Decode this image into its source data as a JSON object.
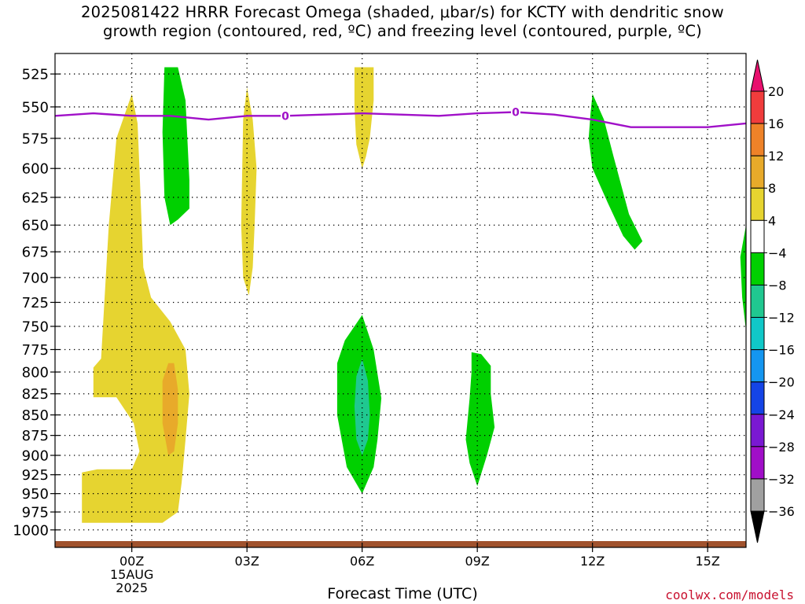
{
  "title": {
    "line1": "2025081422 HRRR Forecast Omega (shaded, μbar/s) for KCTY with dendritic snow",
    "line2": "growth region (contoured, red, ºC) and freezing level (contoured, purple, ºC)"
  },
  "credit": "coolwx.com/models",
  "chart_data": {
    "type": "time-height",
    "title": "2025081422 HRRR Forecast Omega (shaded, μbar/s) for KCTY with dendritic snow growth region (contoured, red, ºC) and freezing level (contoured, purple, ºC)",
    "xlabel": "Forecast Time (UTC)",
    "ylabel": "",
    "x_unit": "hours from 00Z 15AUG 2025",
    "xlim": [
      -2,
      16
    ],
    "ylim": [
      1025,
      510
    ],
    "y_scale": "log-pressure",
    "grid": true,
    "x_ticks": [
      {
        "x": 0,
        "lines": [
          "00Z",
          "15AUG",
          "2025"
        ]
      },
      {
        "x": 3,
        "lines": [
          "03Z"
        ]
      },
      {
        "x": 6,
        "lines": [
          "06Z"
        ]
      },
      {
        "x": 9,
        "lines": [
          "09Z"
        ]
      },
      {
        "x": 12,
        "lines": [
          "12Z"
        ]
      },
      {
        "x": 15,
        "lines": [
          "15Z"
        ]
      }
    ],
    "y_ticks": [
      525,
      550,
      575,
      600,
      625,
      650,
      675,
      700,
      725,
      750,
      775,
      800,
      825,
      850,
      875,
      900,
      925,
      950,
      975,
      1000
    ],
    "colorbar": {
      "levels": [
        20,
        16,
        12,
        8,
        4,
        -4,
        -8,
        -12,
        -16,
        -20,
        -24,
        -28,
        -32,
        -36
      ],
      "bins": [
        {
          "color": "#e8106e"
        },
        {
          "color": "#f03c3c"
        },
        {
          "color": "#ee8228"
        },
        {
          "color": "#e8aa2a"
        },
        {
          "color": "#e6d430"
        },
        {
          "color": "#ffffff"
        },
        {
          "color": "#00d000"
        },
        {
          "color": "#20c890"
        },
        {
          "color": "#10c8c8"
        },
        {
          "color": "#1496f0"
        },
        {
          "color": "#1444e6"
        },
        {
          "color": "#7a18d2"
        },
        {
          "color": "#a00ec8"
        },
        {
          "color": "#a0a0a0"
        },
        {
          "color": "#000000"
        }
      ]
    },
    "omega_regions": [
      {
        "name": "yellow-column-00z",
        "color": "#e6d430",
        "points": [
          [
            -0.7,
            990
          ],
          [
            -1.3,
            990
          ],
          [
            -1.3,
            922
          ],
          [
            -0.9,
            918
          ],
          [
            0,
            918
          ],
          [
            0.2,
            895
          ],
          [
            0.05,
            860
          ],
          [
            -0.4,
            829
          ],
          [
            -1.0,
            829
          ],
          [
            -1.0,
            795
          ],
          [
            -0.8,
            785
          ],
          [
            -0.6,
            650
          ],
          [
            -0.4,
            575
          ],
          [
            0,
            540
          ],
          [
            0.15,
            563
          ],
          [
            0.2,
            600
          ],
          [
            0.3,
            690
          ],
          [
            0.5,
            720
          ],
          [
            1.0,
            745
          ],
          [
            1.4,
            775
          ],
          [
            1.5,
            825
          ],
          [
            1.4,
            880
          ],
          [
            1.3,
            935
          ],
          [
            1.2,
            975
          ],
          [
            0.8,
            990
          ],
          [
            0.1,
            990
          ]
        ]
      },
      {
        "name": "orange-core-01z",
        "color": "#e8aa2a",
        "points": [
          [
            0.95,
            790
          ],
          [
            1.1,
            790
          ],
          [
            1.2,
            820
          ],
          [
            1.2,
            860
          ],
          [
            1.1,
            895
          ],
          [
            0.95,
            900
          ],
          [
            0.8,
            860
          ],
          [
            0.8,
            810
          ]
        ]
      },
      {
        "name": "green-column-01z",
        "color": "#00d000",
        "points": [
          [
            0.85,
            520
          ],
          [
            1.2,
            520
          ],
          [
            1.4,
            545
          ],
          [
            1.5,
            610
          ],
          [
            1.5,
            635
          ],
          [
            1.2,
            645
          ],
          [
            1.0,
            650
          ],
          [
            0.85,
            625
          ],
          [
            0.8,
            570
          ]
        ]
      },
      {
        "name": "yellow-column-03z",
        "color": "#e6d430",
        "points": [
          [
            3.0,
            535
          ],
          [
            3.15,
            560
          ],
          [
            3.25,
            600
          ],
          [
            3.2,
            650
          ],
          [
            3.15,
            690
          ],
          [
            3.05,
            718
          ],
          [
            2.9,
            700
          ],
          [
            2.85,
            650
          ],
          [
            2.9,
            560
          ]
        ]
      },
      {
        "name": "yellow-column-06z",
        "color": "#e6d430",
        "points": [
          [
            5.8,
            520
          ],
          [
            6.3,
            520
          ],
          [
            6.3,
            545
          ],
          [
            6.2,
            575
          ],
          [
            6.1,
            590
          ],
          [
            6.0,
            600
          ],
          [
            5.85,
            580
          ],
          [
            5.8,
            550
          ]
        ]
      },
      {
        "name": "green-lobe-06z",
        "color": "#00d000",
        "points": [
          [
            6.0,
            738
          ],
          [
            6.3,
            775
          ],
          [
            6.5,
            830
          ],
          [
            6.4,
            880
          ],
          [
            6.3,
            915
          ],
          [
            6.0,
            950
          ],
          [
            5.6,
            915
          ],
          [
            5.35,
            850
          ],
          [
            5.35,
            790
          ],
          [
            5.55,
            765
          ]
        ]
      },
      {
        "name": "teal-core-06z",
        "color": "#20c890",
        "points": [
          [
            6.0,
            785
          ],
          [
            6.15,
            810
          ],
          [
            6.2,
            850
          ],
          [
            6.15,
            880
          ],
          [
            6.0,
            900
          ],
          [
            5.85,
            880
          ],
          [
            5.8,
            840
          ],
          [
            5.85,
            805
          ]
        ]
      },
      {
        "name": "green-lobe-09z",
        "color": "#00d000",
        "points": [
          [
            8.85,
            778
          ],
          [
            9.1,
            780
          ],
          [
            9.35,
            793
          ],
          [
            9.35,
            825
          ],
          [
            9.45,
            865
          ],
          [
            9.25,
            900
          ],
          [
            9.0,
            940
          ],
          [
            8.8,
            910
          ],
          [
            8.7,
            880
          ],
          [
            8.8,
            830
          ],
          [
            8.85,
            800
          ]
        ]
      },
      {
        "name": "green-plume-12z",
        "color": "#00d000",
        "points": [
          [
            12.0,
            540
          ],
          [
            12.3,
            560
          ],
          [
            12.55,
            590
          ],
          [
            12.95,
            640
          ],
          [
            13.3,
            665
          ],
          [
            13.1,
            673
          ],
          [
            12.8,
            660
          ],
          [
            12.4,
            630
          ],
          [
            12.0,
            600
          ],
          [
            11.9,
            575
          ],
          [
            11.95,
            555
          ]
        ]
      },
      {
        "name": "green-edge-16z",
        "color": "#00d000",
        "points": [
          [
            16.0,
            650
          ],
          [
            16.0,
            755
          ],
          [
            15.9,
            720
          ],
          [
            15.85,
            680
          ]
        ]
      }
    ],
    "freezing_level": {
      "label": "0",
      "label_at": [
        4,
        10
      ],
      "color": "#a010c8",
      "points": [
        [
          -2,
          557
        ],
        [
          -1,
          555
        ],
        [
          0,
          557
        ],
        [
          1,
          557
        ],
        [
          2,
          560
        ],
        [
          3,
          557
        ],
        [
          4,
          557
        ],
        [
          5,
          556
        ],
        [
          6,
          555
        ],
        [
          7,
          556
        ],
        [
          8,
          557
        ],
        [
          9,
          555
        ],
        [
          10,
          554
        ],
        [
          11,
          556
        ],
        [
          12,
          560
        ],
        [
          13,
          566
        ],
        [
          14,
          566
        ],
        [
          15,
          566
        ],
        [
          16,
          563
        ]
      ]
    },
    "terrain_color": "#a0522d"
  }
}
